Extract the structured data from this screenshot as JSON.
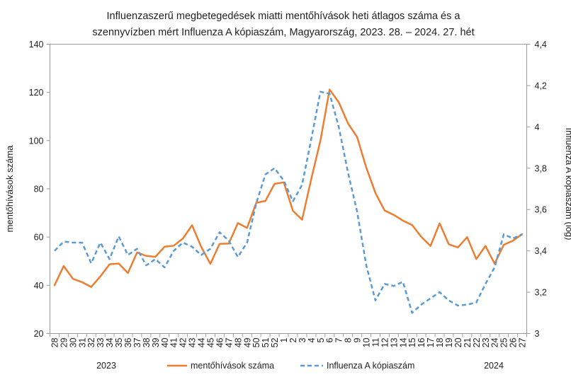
{
  "chart_data": {
    "type": "line",
    "title": [
      "Influenzaszerű megbetegedések miatti mentőhívások heti átlagos száma és a",
      "szennyvízben mért Influenza A kópiaszám, Magyarország, 2023. 28. – 2024. 27. hét"
    ],
    "categories": [
      "28",
      "29",
      "30",
      "31",
      "32",
      "33",
      "34",
      "35",
      "36",
      "37",
      "38",
      "39",
      "40",
      "41",
      "42",
      "43",
      "44",
      "45",
      "46",
      "47",
      "48",
      "49",
      "50",
      "51",
      "52",
      "1",
      "2",
      "3",
      "4",
      "5",
      "6",
      "7",
      "8",
      "9",
      "10",
      "11",
      "12",
      "13",
      "14",
      "15",
      "16",
      "17",
      "18",
      "19",
      "20",
      "21",
      "22",
      "23",
      "24",
      "25",
      "26",
      "27"
    ],
    "year_labels": {
      "start": "2023",
      "end": "2024"
    },
    "ylabel": "mentőhívások száma",
    "y2label": "Influenza A kópiaszám (log)",
    "ylim": [
      20,
      140
    ],
    "y2lim": [
      3,
      4.4
    ],
    "yticks": [
      "20",
      "40",
      "60",
      "80",
      "100",
      "120",
      "140"
    ],
    "y2ticks": [
      "3",
      "3,2",
      "3,4",
      "3,6",
      "3,8",
      "4",
      "4,2",
      "4,4"
    ],
    "legend_position": "bottom",
    "series": [
      {
        "name": "mentőhívások száma",
        "axis": "left",
        "color": "#ED7D31",
        "style": "solid",
        "values": [
          40,
          48,
          42.7,
          41.3,
          39.3,
          43.7,
          48.7,
          49,
          45.1,
          53.6,
          52.2,
          51.8,
          56,
          56.4,
          59.4,
          64.9,
          55.9,
          48.9,
          57.2,
          57.3,
          65.8,
          63.8,
          74.2,
          75,
          82.1,
          82.7,
          70.9,
          67.2,
          84.1,
          100,
          121.2,
          115.9,
          107.2,
          101.5,
          88.8,
          78.3,
          71,
          69.2,
          66.8,
          65,
          60.1,
          56.3,
          65.7,
          57,
          55.7,
          60,
          50.9,
          56.3,
          49,
          56.8,
          58.5,
          61.2
        ]
      },
      {
        "name": "Influenza A kópiaszám",
        "axis": "right",
        "color": "#5B9BD5",
        "style": "dashed",
        "values": [
          3.4,
          3.445,
          3.44,
          3.44,
          3.34,
          3.44,
          3.36,
          3.47,
          3.38,
          3.41,
          3.33,
          3.36,
          3.32,
          3.4,
          3.44,
          3.42,
          3.38,
          3.41,
          3.49,
          3.45,
          3.37,
          3.44,
          3.63,
          3.77,
          3.8,
          3.74,
          3.64,
          3.72,
          3.94,
          4.17,
          4.16,
          4.0,
          3.78,
          3.59,
          3.33,
          3.16,
          3.24,
          3.23,
          3.25,
          3.1,
          3.14,
          3.17,
          3.2,
          3.16,
          3.135,
          3.14,
          3.15,
          3.24,
          3.32,
          3.48,
          3.46,
          3.48
        ]
      }
    ]
  }
}
